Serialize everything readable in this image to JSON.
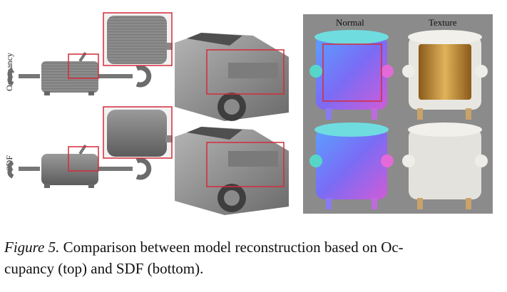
{
  "figure": {
    "row_labels": {
      "top": "Occupancy",
      "bottom": "SDF"
    },
    "panel": {
      "normal_title": "Normal",
      "texture_title": "Texture"
    },
    "highlight_color": "#d62a3a"
  },
  "caption": {
    "label": "Figure 5.",
    "text_line1": " Comparison between model reconstruction based on Oc-",
    "text_line2": "cupancy (top) and SDF (bottom)."
  }
}
